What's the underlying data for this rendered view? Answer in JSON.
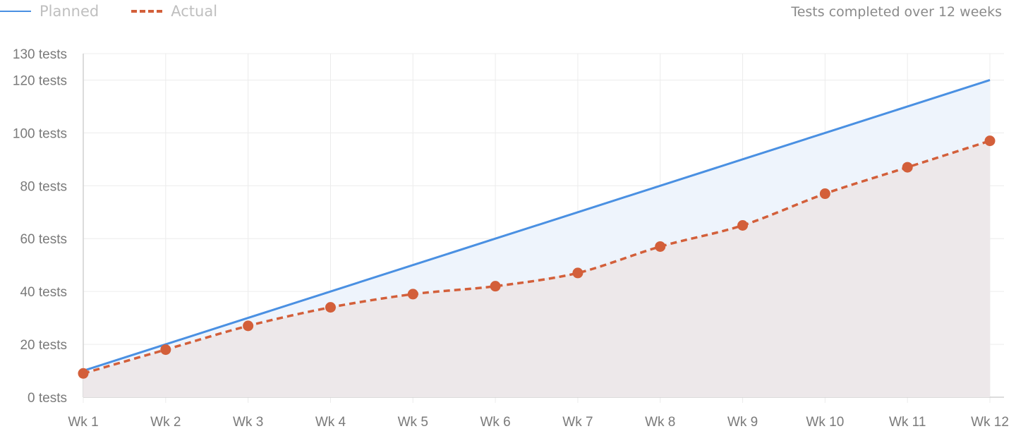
{
  "legend": {
    "planned": "Planned",
    "actual": "Actual"
  },
  "caption": "Tests completed over 12 weeks",
  "colors": {
    "planned": "#4a90e2",
    "actual": "#d35f3a",
    "planned_fill": "#eef4fc",
    "actual_fill": "#ede8ea",
    "grid": "#ececec",
    "axis": "#d0d0d0"
  },
  "chart_data": {
    "type": "line",
    "categories": [
      "Wk 1",
      "Wk 2",
      "Wk 3",
      "Wk 4",
      "Wk 5",
      "Wk 6",
      "Wk 7",
      "Wk 8",
      "Wk 9",
      "Wk 10",
      "Wk 11",
      "Wk 12"
    ],
    "series": [
      {
        "name": "Planned",
        "values": [
          10,
          20,
          30,
          40,
          50,
          60,
          70,
          80,
          90,
          100,
          110,
          120
        ],
        "style": "solid",
        "fill": true
      },
      {
        "name": "Actual",
        "values": [
          9,
          18,
          27,
          34,
          39,
          42,
          47,
          57,
          65,
          77,
          87,
          97
        ],
        "style": "dashed",
        "markers": true,
        "fill": true
      }
    ],
    "y_ticks": [
      0,
      20,
      40,
      60,
      80,
      100,
      120,
      130
    ],
    "y_tick_suffix": " tests",
    "ylim": [
      0,
      130
    ],
    "grid": true,
    "legend_position": "top-left"
  }
}
